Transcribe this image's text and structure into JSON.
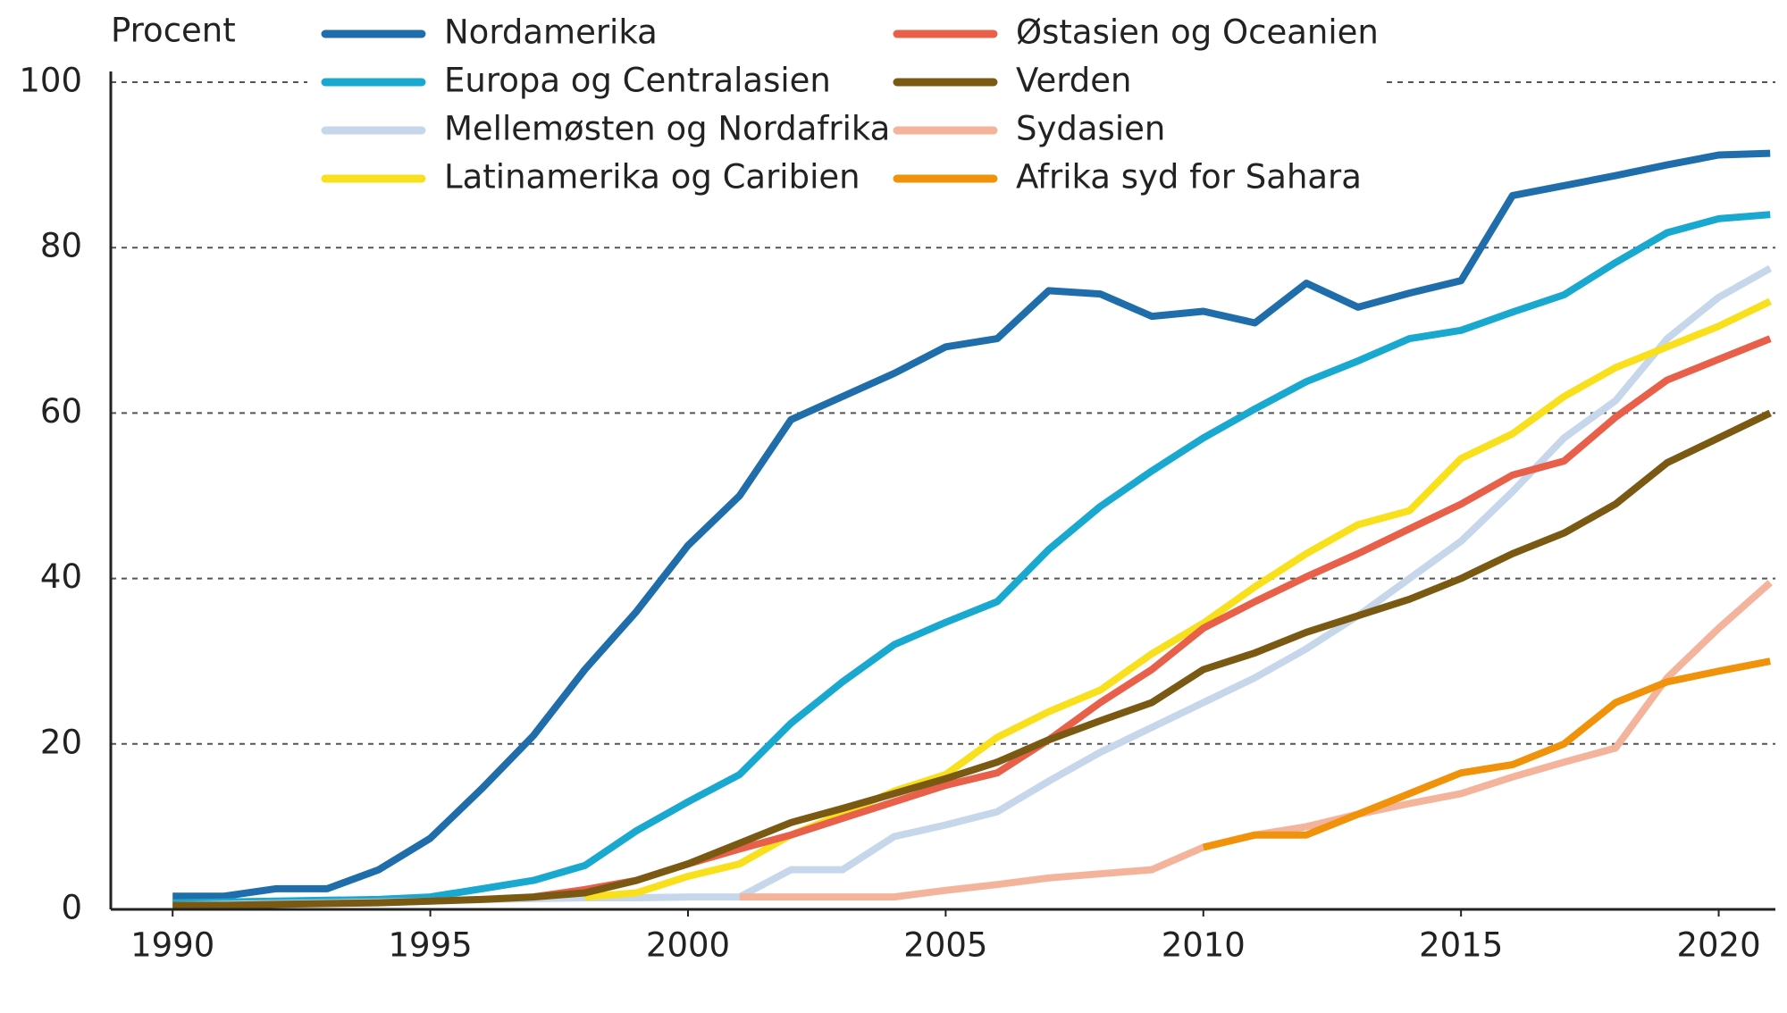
{
  "chart_data": {
    "type": "line",
    "y_label": "Procent",
    "x": [
      1990,
      1991,
      1992,
      1993,
      1994,
      1995,
      1996,
      1997,
      1998,
      1999,
      2000,
      2001,
      2002,
      2003,
      2004,
      2005,
      2006,
      2007,
      2008,
      2009,
      2010,
      2011,
      2012,
      2013,
      2014,
      2015,
      2016,
      2017,
      2018,
      2019,
      2020,
      2021
    ],
    "xlim": [
      1988.8,
      2021.1
    ],
    "xticks": [
      1990,
      1995,
      2000,
      2005,
      2010,
      2015,
      2020
    ],
    "ylim": [
      0,
      100
    ],
    "yticks": [
      0,
      20,
      40,
      60,
      80,
      100
    ],
    "grid": true,
    "series": [
      {
        "name": "Nordamerika",
        "color": "#1f6dab",
        "values": [
          1.6,
          1.6,
          2.5,
          2.5,
          4.8,
          8.6,
          14.6,
          21,
          29,
          36,
          44,
          50,
          59.2,
          62,
          64.8,
          68,
          69,
          74.8,
          74.4,
          71.7,
          72.3,
          70.9,
          75.7,
          72.8,
          74.5,
          76,
          86.3,
          87.5,
          88.7,
          90,
          91.2,
          91.4
        ]
      },
      {
        "name": "Europa og Centralasien",
        "color": "#19a8cf",
        "values": [
          0.8,
          0.9,
          1,
          1.1,
          1.2,
          1.5,
          2.5,
          3.5,
          5.3,
          9.5,
          13,
          16.3,
          22.5,
          27.5,
          32,
          34.7,
          37.2,
          43.5,
          48.7,
          53,
          57,
          60.5,
          63.8,
          66.3,
          69,
          70,
          72.2,
          74.3,
          78.2,
          81.8,
          83.5,
          84
        ]
      },
      {
        "name": "Mellemøsten og Nordafrika",
        "color": "#c6d7eb",
        "values": [
          0.5,
          0.6,
          0.7,
          0.8,
          0.9,
          1,
          1.2,
          1.3,
          1.4,
          1.4,
          1.5,
          1.5,
          4.8,
          4.8,
          8.8,
          10.2,
          11.8,
          15.5,
          19,
          22,
          25,
          28,
          31.5,
          35.5,
          40,
          44.5,
          50.5,
          57,
          61.5,
          69,
          74,
          77.5
        ]
      },
      {
        "name": "Latinamerika og Caribien",
        "color": "#f8e01c",
        "values": [
          null,
          null,
          null,
          null,
          null,
          null,
          null,
          null,
          1.5,
          2,
          4,
          5.5,
          9,
          11.5,
          14.3,
          16.3,
          20.8,
          23.9,
          26.5,
          30.9,
          34.6,
          39,
          43,
          46.5,
          48.2,
          54.5,
          57.5,
          62,
          65.5,
          68,
          70.5,
          73.5
        ]
      },
      {
        "name": "Østasien og Oceanien",
        "color": "#e8604a",
        "values": [
          null,
          null,
          null,
          null,
          null,
          null,
          null,
          1.5,
          2.4,
          3.5,
          5.5,
          7.3,
          9,
          11,
          13,
          15,
          16.5,
          20.5,
          25,
          29,
          34,
          37.2,
          40.2,
          43,
          46,
          49,
          52.5,
          54.2,
          59.5,
          64,
          66.5,
          69
        ]
      },
      {
        "name": "Verden",
        "color": "#7a5a12",
        "values": [
          0.5,
          0.5,
          0.6,
          0.7,
          0.8,
          1,
          1.2,
          1.5,
          2,
          3.5,
          5.5,
          8,
          10.5,
          12.2,
          14,
          15.8,
          17.8,
          20.5,
          22.8,
          25,
          29,
          31,
          33.5,
          35.5,
          37.5,
          40,
          43,
          45.5,
          49,
          54,
          57,
          60
        ]
      },
      {
        "name": "Sydasien",
        "color": "#f4b49c",
        "values": [
          null,
          null,
          null,
          null,
          null,
          null,
          null,
          null,
          null,
          null,
          null,
          1.5,
          1.5,
          1.5,
          1.5,
          2.3,
          3,
          3.8,
          4.3,
          4.8,
          7.5,
          9,
          10,
          11.5,
          12.8,
          14,
          16,
          17.8,
          19.5,
          28,
          34,
          39.5
        ]
      },
      {
        "name": "Afrika syd for Sahara",
        "color": "#f0920a",
        "values": [
          null,
          null,
          null,
          null,
          null,
          null,
          null,
          null,
          null,
          null,
          null,
          null,
          null,
          null,
          null,
          null,
          null,
          null,
          null,
          null,
          7.5,
          9,
          9,
          11.5,
          14,
          16.5,
          17.5,
          20,
          25,
          27.5,
          28.8,
          30
        ]
      }
    ]
  }
}
